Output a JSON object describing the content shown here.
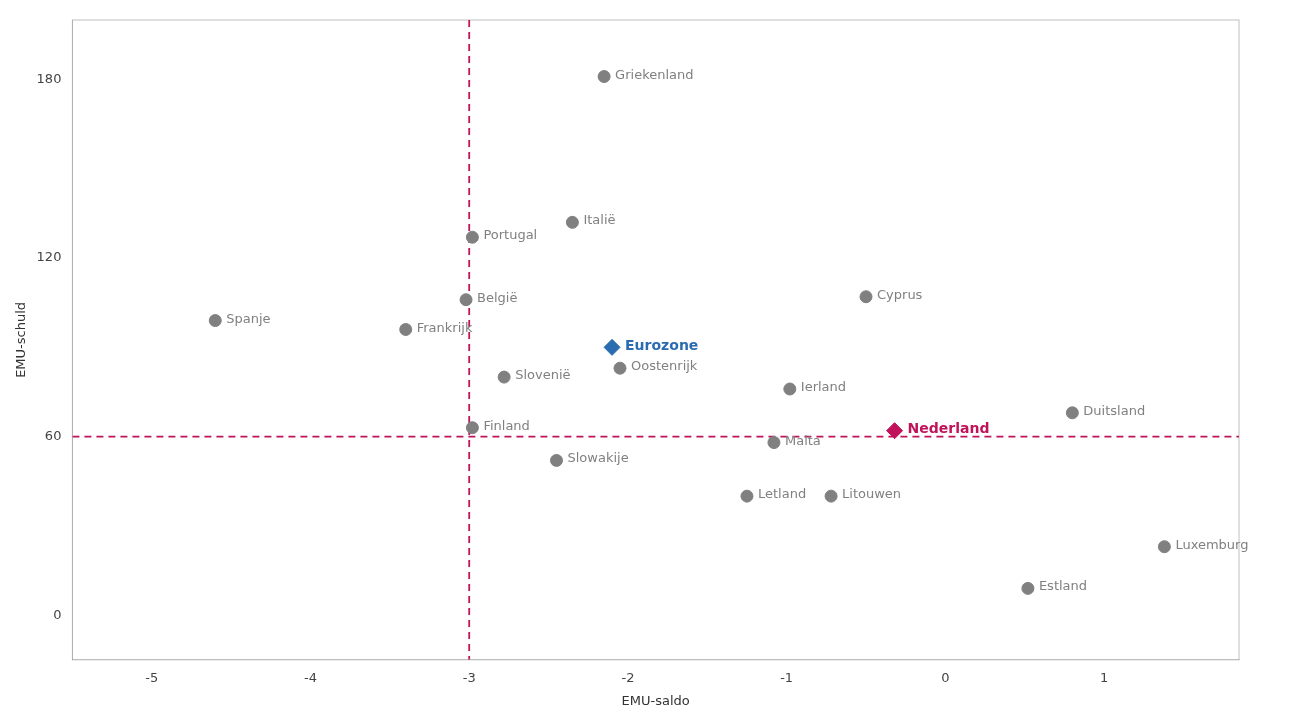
{
  "chart_data": {
    "type": "scatter",
    "xlabel": "EMU-saldo",
    "ylabel": "EMU-schuld",
    "xlim": [
      -5.5,
      1.85
    ],
    "ylim": [
      -15,
      200
    ],
    "xticks": [
      -5,
      -4,
      -3,
      -2,
      -1,
      0,
      1
    ],
    "yticks": [
      0,
      60,
      120,
      180
    ],
    "grid": false,
    "ref_lines": {
      "x": -3,
      "y": 60,
      "color": "#C0135A",
      "line_style": "dashed"
    },
    "series": [
      {
        "color": "#808080",
        "marker": "circle",
        "labels": [
          "Griekenland",
          "Italië",
          "Portugal",
          "België",
          "Spanje",
          "Frankrijk",
          "Cyprus",
          "Slovenië",
          "Ierland",
          "Oostenrijk",
          "Duitsland",
          "Finland",
          "Slowakije",
          "Malta",
          "Letland",
          "Litouwen",
          "Luxemburg",
          "Estland"
        ],
        "x": [
          -2.15,
          -2.35,
          -2.98,
          -3.02,
          -4.6,
          -3.4,
          -0.5,
          -2.78,
          -0.98,
          -2.05,
          0.8,
          -2.98,
          -2.45,
          -1.08,
          -1.25,
          -0.72,
          1.38,
          0.52
        ],
        "values": [
          181,
          132,
          127,
          106,
          99,
          96,
          107,
          80,
          76,
          83,
          68,
          63,
          52,
          58,
          40,
          40,
          23,
          9
        ]
      },
      {
        "color": "#2B6CB0",
        "marker": "diamond",
        "labels": [
          "Eurozone"
        ],
        "x": [
          -2.1
        ],
        "values": [
          90
        ]
      },
      {
        "color": "#C0135A",
        "marker": "diamond",
        "labels": [
          "Nederland"
        ],
        "x": [
          -0.32
        ],
        "values": [
          62
        ]
      }
    ]
  }
}
